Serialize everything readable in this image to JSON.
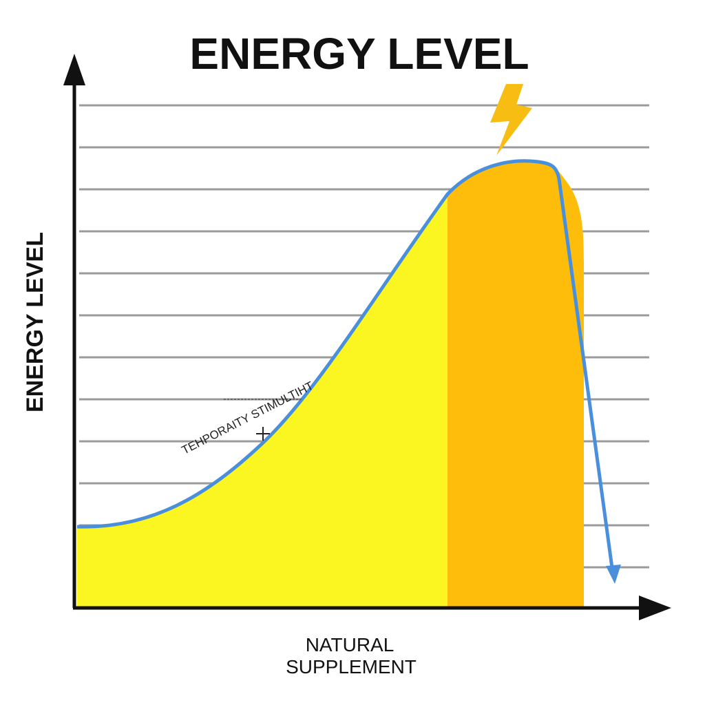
{
  "title": "ENERGY LEVEL",
  "y_axis_label": "ENERGY LEVEL",
  "x_axis_label": [
    "NATURAL",
    "SUPPLEMENT"
  ],
  "annotation": "TEHPORAITY STIMULTIHT"
}
